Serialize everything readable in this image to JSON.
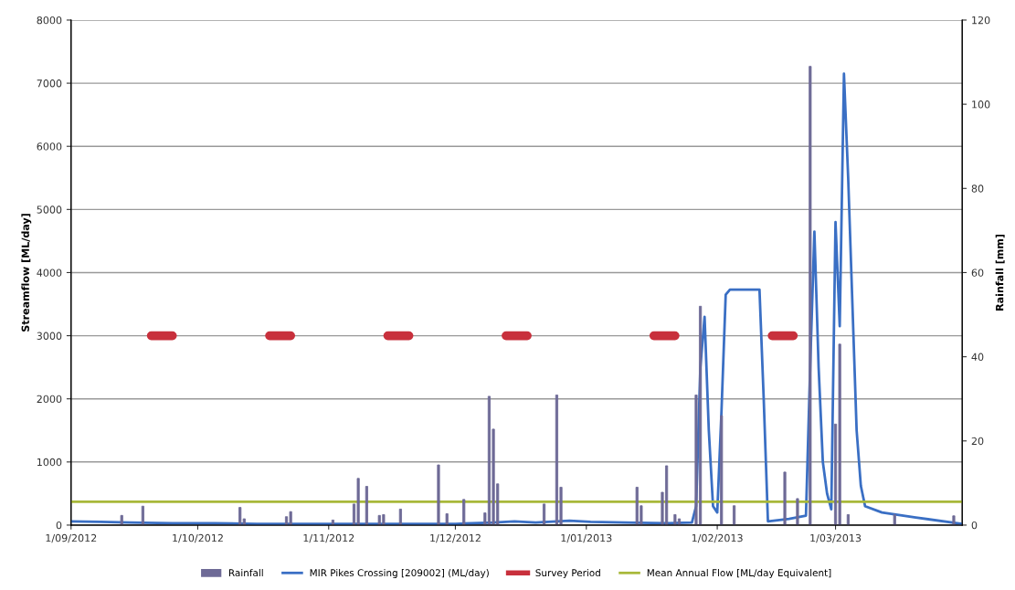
{
  "chart_data": {
    "type": "line",
    "xlabel": null,
    "ylabel": "Streamflow [ML/day]",
    "y2label": "Rainfall [mm]",
    "xlim": [
      "2012-09-01",
      "2013-03-31"
    ],
    "xticks": [
      {
        "value": "2012-09-01",
        "label": "1/09/2012"
      },
      {
        "value": "2012-10-01",
        "label": "1/10/2012"
      },
      {
        "value": "2012-11-01",
        "label": "1/11/2012"
      },
      {
        "value": "2012-12-01",
        "label": "1/12/2012"
      },
      {
        "value": "2013-01-01",
        "label": "1/01/2013"
      },
      {
        "value": "2013-02-01",
        "label": "1/02/2013"
      },
      {
        "value": "2013-03-01",
        "label": "1/03/2013"
      }
    ],
    "ylim": [
      0,
      8000
    ],
    "yticks": [
      0,
      1000,
      2000,
      3000,
      4000,
      5000,
      6000,
      7000,
      8000
    ],
    "y2lim": [
      0,
      120
    ],
    "y2ticks": [
      0,
      20,
      40,
      60,
      80,
      100,
      120
    ],
    "grid": "y",
    "legend": "bottom",
    "series": [
      {
        "name": "Rainfall",
        "type": "bar",
        "axis": "y2",
        "color": "#6e6a96",
        "x": [
          "2012-09-13",
          "2012-09-18",
          "2012-10-11",
          "2012-10-12",
          "2012-10-22",
          "2012-10-23",
          "2012-11-02",
          "2012-11-07",
          "2012-11-08",
          "2012-11-10",
          "2012-11-13",
          "2012-11-14",
          "2012-11-18",
          "2012-11-27",
          "2012-11-29",
          "2012-12-03",
          "2012-12-08",
          "2012-12-09",
          "2012-12-10",
          "2012-12-11",
          "2012-12-22",
          "2012-12-25",
          "2012-12-26",
          "2013-01-13",
          "2013-01-14",
          "2013-01-19",
          "2013-01-20",
          "2013-01-22",
          "2013-01-23",
          "2013-01-27",
          "2013-01-28",
          "2013-02-02",
          "2013-02-05",
          "2013-02-17",
          "2013-02-20",
          "2013-02-23",
          "2013-03-01",
          "2013-03-02",
          "2013-03-04",
          "2013-03-15",
          "2013-03-29"
        ],
        "values": [
          2.3,
          4.5,
          4.2,
          1.5,
          2.0,
          3.2,
          1.2,
          5.0,
          11.1,
          9.2,
          2.3,
          2.5,
          3.8,
          14.3,
          2.7,
          6.1,
          2.9,
          30.6,
          22.8,
          9.8,
          5.0,
          30.9,
          9.0,
          9.0,
          4.6,
          7.8,
          14.1,
          2.5,
          1.5,
          30.9,
          52,
          26,
          4.6,
          12.6,
          6.3,
          109,
          24,
          43,
          2.5,
          2.5,
          2.2
        ]
      },
      {
        "name": "MIR Pikes Crossing [209002] (ML/day)",
        "color": "#3a6fc4",
        "x": [
          "2012-09-01",
          "2012-09-08",
          "2012-09-15",
          "2012-09-25",
          "2012-10-05",
          "2012-10-15",
          "2012-10-25",
          "2012-11-05",
          "2012-11-15",
          "2012-11-25",
          "2012-12-01",
          "2012-12-10",
          "2012-12-15",
          "2012-12-20",
          "2012-12-28",
          "2013-01-02",
          "2013-01-10",
          "2013-01-20",
          "2013-01-26",
          "2013-01-27",
          "2013-01-28",
          "2013-01-29",
          "2013-01-30",
          "2013-01-31",
          "2013-02-01",
          "2013-02-02",
          "2013-02-03",
          "2013-02-04",
          "2013-02-11",
          "2013-02-12",
          "2013-02-13",
          "2013-02-18",
          "2013-02-22",
          "2013-02-23",
          "2013-02-24",
          "2013-02-25",
          "2013-02-26",
          "2013-02-27",
          "2013-02-28",
          "2013-03-01",
          "2013-03-02",
          "2013-03-03",
          "2013-03-04",
          "2013-03-05",
          "2013-03-06",
          "2013-03-07",
          "2013-03-08",
          "2013-03-12",
          "2013-03-20",
          "2013-03-31"
        ],
        "values": [
          60,
          50,
          40,
          30,
          30,
          20,
          20,
          20,
          20,
          20,
          20,
          40,
          60,
          40,
          70,
          50,
          40,
          30,
          40,
          300,
          2500,
          3300,
          1500,
          300,
          200,
          1800,
          3650,
          3730,
          3730,
          2000,
          60,
          100,
          150,
          2500,
          4650,
          2500,
          1000,
          500,
          250,
          4800,
          3150,
          7150,
          5500,
          3500,
          1500,
          620,
          300,
          200,
          120,
          20
        ]
      },
      {
        "name": "Survey Period",
        "color": "#c8303c",
        "x": [
          "2012-09-20",
          "2012-09-25",
          "2012-09-26",
          "2012-10-18",
          "2012-10-23",
          "2012-10-24",
          "2012-11-15",
          "2012-11-20",
          "2012-11-21",
          "2012-12-13",
          "2012-12-18",
          "2012-12-19",
          "2013-01-17",
          "2013-01-22",
          "2013-01-23",
          "2013-02-14",
          "2013-02-19"
        ],
        "values": [
          3000,
          3000,
          null,
          3000,
          3000,
          null,
          3000,
          3000,
          null,
          3000,
          3000,
          null,
          3000,
          3000,
          null,
          3000,
          3000
        ]
      },
      {
        "name": "Mean Annual Flow [ML/day Equivalent]",
        "color": "#a8b83a",
        "x": [
          "2012-09-01",
          "2013-03-31"
        ],
        "values": [
          370,
          370
        ]
      }
    ]
  }
}
